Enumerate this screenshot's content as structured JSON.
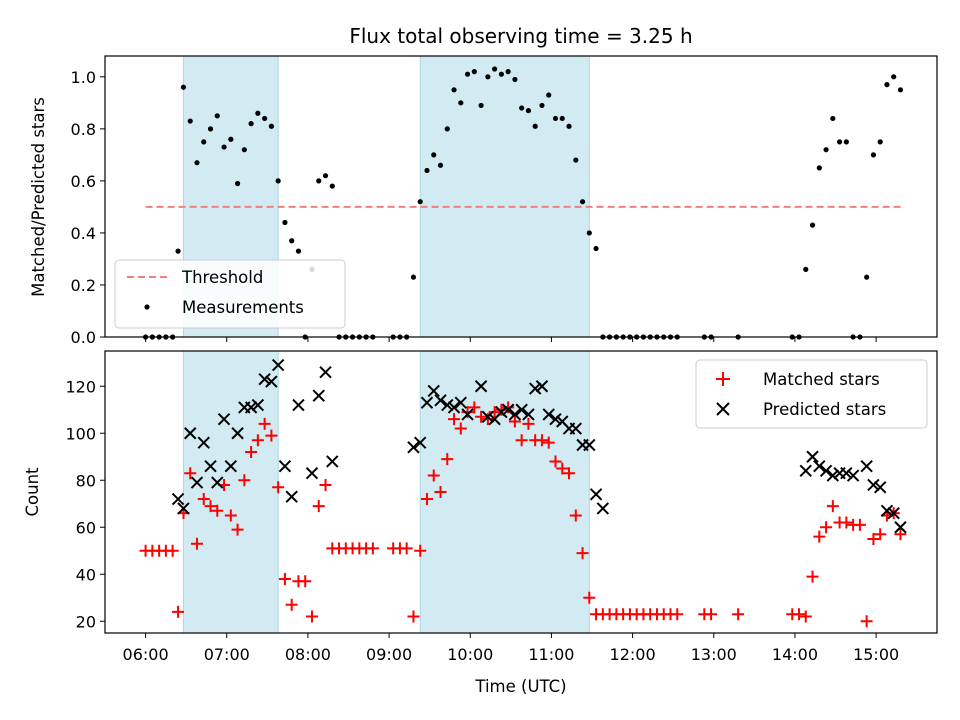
{
  "chart_data": {
    "title": "Flux total observing time = 3.25 h",
    "xlabel": "Time (UTC)",
    "x_ticks": [
      "06:00",
      "07:00",
      "08:00",
      "09:00",
      "10:00",
      "11:00",
      "12:00",
      "13:00",
      "14:00",
      "15:00"
    ],
    "x_range": [
      "05:30",
      "15:45"
    ],
    "shaded_intervals": [
      [
        "06:28",
        "07:38"
      ],
      [
        "09:23",
        "11:28"
      ]
    ],
    "colors": {
      "shade": "#add8e6",
      "threshold": "#f08080",
      "matched": "#ff0000",
      "predicted": "#000000",
      "measurement": "#000000"
    },
    "panels": [
      {
        "type": "scatter",
        "ylabel": "Matched/Predicted stars",
        "ylim": [
          0,
          1.08
        ],
        "y_ticks": [
          "0.0",
          "0.2",
          "0.4",
          "0.6",
          "0.8",
          "1.0"
        ],
        "y_tick_values": [
          0,
          0.2,
          0.4,
          0.6,
          0.8,
          1.0
        ],
        "legend": {
          "placement": "lower-left",
          "threshold_label": "Threshold",
          "measurements_label": "Measurements"
        },
        "threshold": {
          "value": 0.5,
          "x": [
            "06:00",
            "15:20"
          ]
        },
        "measurements": [
          [
            "06:00",
            0
          ],
          [
            "06:05",
            0
          ],
          [
            "06:10",
            0
          ],
          [
            "06:15",
            0
          ],
          [
            "06:20",
            0
          ],
          [
            "06:24",
            0.33
          ],
          [
            "06:28",
            0.96
          ],
          [
            "06:33",
            0.83
          ],
          [
            "06:38",
            0.67
          ],
          [
            "06:43",
            0.75
          ],
          [
            "06:48",
            0.8
          ],
          [
            "06:53",
            0.85
          ],
          [
            "06:58",
            0.73
          ],
          [
            "07:03",
            0.76
          ],
          [
            "07:08",
            0.59
          ],
          [
            "07:13",
            0.72
          ],
          [
            "07:18",
            0.82
          ],
          [
            "07:23",
            0.86
          ],
          [
            "07:28",
            0.84
          ],
          [
            "07:33",
            0.81
          ],
          [
            "07:38",
            0.6
          ],
          [
            "07:43",
            0.44
          ],
          [
            "07:48",
            0.37
          ],
          [
            "07:53",
            0.33
          ],
          [
            "07:58",
            0
          ],
          [
            "08:03",
            0.26
          ],
          [
            "08:08",
            0.6
          ],
          [
            "08:13",
            0.62
          ],
          [
            "08:18",
            0.58
          ],
          [
            "08:23",
            0
          ],
          [
            "08:28",
            0
          ],
          [
            "08:33",
            0
          ],
          [
            "08:38",
            0
          ],
          [
            "08:43",
            0
          ],
          [
            "08:48",
            0
          ],
          [
            "09:03",
            0
          ],
          [
            "09:08",
            0
          ],
          [
            "09:13",
            0
          ],
          [
            "09:18",
            0.23
          ],
          [
            "09:23",
            0.52
          ],
          [
            "09:28",
            0.64
          ],
          [
            "09:33",
            0.7
          ],
          [
            "09:38",
            0.66
          ],
          [
            "09:43",
            0.8
          ],
          [
            "09:48",
            0.95
          ],
          [
            "09:53",
            0.9
          ],
          [
            "09:58",
            1.01
          ],
          [
            "10:03",
            1.02
          ],
          [
            "10:08",
            0.89
          ],
          [
            "10:13",
            1.0
          ],
          [
            "10:18",
            1.03
          ],
          [
            "10:23",
            1.01
          ],
          [
            "10:28",
            1.02
          ],
          [
            "10:33",
            0.99
          ],
          [
            "10:38",
            0.88
          ],
          [
            "10:43",
            0.87
          ],
          [
            "10:48",
            0.81
          ],
          [
            "10:53",
            0.89
          ],
          [
            "10:58",
            0.93
          ],
          [
            "11:03",
            0.84
          ],
          [
            "11:08",
            0.84
          ],
          [
            "11:13",
            0.81
          ],
          [
            "11:18",
            0.68
          ],
          [
            "11:23",
            0.52
          ],
          [
            "11:28",
            0.4
          ],
          [
            "11:33",
            0.34
          ],
          [
            "11:38",
            0
          ],
          [
            "11:43",
            0
          ],
          [
            "11:48",
            0
          ],
          [
            "11:53",
            0
          ],
          [
            "11:58",
            0
          ],
          [
            "12:03",
            0
          ],
          [
            "12:08",
            0
          ],
          [
            "12:13",
            0
          ],
          [
            "12:18",
            0
          ],
          [
            "12:23",
            0
          ],
          [
            "12:28",
            0
          ],
          [
            "12:33",
            0
          ],
          [
            "12:53",
            0
          ],
          [
            "12:58",
            0
          ],
          [
            "13:18",
            0
          ],
          [
            "13:58",
            0
          ],
          [
            "14:03",
            0
          ],
          [
            "14:08",
            0.26
          ],
          [
            "14:13",
            0.43
          ],
          [
            "14:18",
            0.65
          ],
          [
            "14:23",
            0.72
          ],
          [
            "14:28",
            0.84
          ],
          [
            "14:33",
            0.75
          ],
          [
            "14:38",
            0.75
          ],
          [
            "14:43",
            0
          ],
          [
            "14:48",
            0
          ],
          [
            "14:53",
            0.23
          ],
          [
            "14:58",
            0.7
          ],
          [
            "15:03",
            0.75
          ],
          [
            "15:08",
            0.97
          ],
          [
            "15:13",
            1.0
          ],
          [
            "15:18",
            0.95
          ]
        ]
      },
      {
        "type": "scatter",
        "ylabel": "Count",
        "ylim": [
          15,
          135
        ],
        "y_ticks": [
          "20",
          "40",
          "60",
          "80",
          "100",
          "120"
        ],
        "y_tick_values": [
          20,
          40,
          60,
          80,
          100,
          120
        ],
        "legend": {
          "placement": "top-right",
          "matched_label": "Matched stars",
          "predicted_label": "Predicted stars"
        },
        "matched": [
          [
            "06:00",
            50
          ],
          [
            "06:05",
            50
          ],
          [
            "06:10",
            50
          ],
          [
            "06:15",
            50
          ],
          [
            "06:20",
            50
          ],
          [
            "06:24",
            24
          ],
          [
            "06:28",
            66
          ],
          [
            "06:33",
            83
          ],
          [
            "06:38",
            53
          ],
          [
            "06:43",
            72
          ],
          [
            "06:48",
            69
          ],
          [
            "06:53",
            67
          ],
          [
            "06:58",
            78
          ],
          [
            "07:03",
            65
          ],
          [
            "07:08",
            59
          ],
          [
            "07:13",
            80
          ],
          [
            "07:18",
            92
          ],
          [
            "07:23",
            97
          ],
          [
            "07:28",
            104
          ],
          [
            "07:33",
            99
          ],
          [
            "07:38",
            77
          ],
          [
            "07:43",
            38
          ],
          [
            "07:48",
            27
          ],
          [
            "07:53",
            37
          ],
          [
            "07:58",
            37
          ],
          [
            "08:03",
            22
          ],
          [
            "08:08",
            69
          ],
          [
            "08:13",
            78
          ],
          [
            "08:18",
            51
          ],
          [
            "08:23",
            51
          ],
          [
            "08:28",
            51
          ],
          [
            "08:33",
            51
          ],
          [
            "08:38",
            51
          ],
          [
            "08:43",
            51
          ],
          [
            "08:48",
            51
          ],
          [
            "09:03",
            51
          ],
          [
            "09:08",
            51
          ],
          [
            "09:13",
            51
          ],
          [
            "09:18",
            22
          ],
          [
            "09:23",
            50
          ],
          [
            "09:28",
            72
          ],
          [
            "09:33",
            82
          ],
          [
            "09:38",
            75
          ],
          [
            "09:43",
            89
          ],
          [
            "09:48",
            106
          ],
          [
            "09:53",
            102
          ],
          [
            "09:58",
            109
          ],
          [
            "10:03",
            111
          ],
          [
            "10:08",
            107
          ],
          [
            "10:13",
            106
          ],
          [
            "10:18",
            109
          ],
          [
            "10:23",
            110
          ],
          [
            "10:28",
            111
          ],
          [
            "10:33",
            105
          ],
          [
            "10:38",
            97
          ],
          [
            "10:43",
            104
          ],
          [
            "10:48",
            97
          ],
          [
            "10:53",
            97
          ],
          [
            "10:58",
            96
          ],
          [
            "11:03",
            88
          ],
          [
            "11:08",
            85
          ],
          [
            "11:13",
            83
          ],
          [
            "11:18",
            65
          ],
          [
            "11:23",
            49
          ],
          [
            "11:28",
            30
          ],
          [
            "11:33",
            23
          ],
          [
            "11:38",
            23
          ],
          [
            "11:43",
            23
          ],
          [
            "11:48",
            23
          ],
          [
            "11:53",
            23
          ],
          [
            "11:58",
            23
          ],
          [
            "12:03",
            23
          ],
          [
            "12:08",
            23
          ],
          [
            "12:13",
            23
          ],
          [
            "12:18",
            23
          ],
          [
            "12:23",
            23
          ],
          [
            "12:28",
            23
          ],
          [
            "12:33",
            23
          ],
          [
            "12:53",
            23
          ],
          [
            "12:58",
            23
          ],
          [
            "13:18",
            23
          ],
          [
            "13:58",
            23
          ],
          [
            "14:03",
            23
          ],
          [
            "14:08",
            22
          ],
          [
            "14:13",
            39
          ],
          [
            "14:18",
            56
          ],
          [
            "14:23",
            60
          ],
          [
            "14:28",
            69
          ],
          [
            "14:33",
            62
          ],
          [
            "14:38",
            62
          ],
          [
            "14:43",
            61
          ],
          [
            "14:48",
            61
          ],
          [
            "14:53",
            20
          ],
          [
            "14:58",
            55
          ],
          [
            "15:03",
            57
          ],
          [
            "15:08",
            65
          ],
          [
            "15:13",
            66
          ],
          [
            "15:18",
            57
          ]
        ],
        "predicted": [
          [
            "06:24",
            72
          ],
          [
            "06:28",
            68
          ],
          [
            "06:33",
            100
          ],
          [
            "06:38",
            79
          ],
          [
            "06:43",
            96
          ],
          [
            "06:48",
            86
          ],
          [
            "06:53",
            79
          ],
          [
            "06:58",
            106
          ],
          [
            "07:03",
            86
          ],
          [
            "07:08",
            100
          ],
          [
            "07:13",
            111
          ],
          [
            "07:18",
            111
          ],
          [
            "07:23",
            112
          ],
          [
            "07:28",
            123
          ],
          [
            "07:33",
            122
          ],
          [
            "07:38",
            129
          ],
          [
            "07:43",
            86
          ],
          [
            "07:48",
            73
          ],
          [
            "07:53",
            112
          ],
          [
            "08:03",
            83
          ],
          [
            "08:08",
            116
          ],
          [
            "08:13",
            126
          ],
          [
            "08:18",
            88
          ],
          [
            "09:18",
            94
          ],
          [
            "09:23",
            96
          ],
          [
            "09:28",
            113
          ],
          [
            "09:33",
            118
          ],
          [
            "09:38",
            114
          ],
          [
            "09:43",
            112
          ],
          [
            "09:48",
            111
          ],
          [
            "09:53",
            113
          ],
          [
            "09:58",
            108
          ],
          [
            "10:08",
            120
          ],
          [
            "10:13",
            107
          ],
          [
            "10:18",
            106
          ],
          [
            "10:23",
            109
          ],
          [
            "10:28",
            110
          ],
          [
            "10:33",
            108
          ],
          [
            "10:38",
            110
          ],
          [
            "10:43",
            108
          ],
          [
            "10:48",
            119
          ],
          [
            "10:53",
            120
          ],
          [
            "10:58",
            108
          ],
          [
            "11:03",
            106
          ],
          [
            "11:08",
            105
          ],
          [
            "11:13",
            102
          ],
          [
            "11:18",
            102
          ],
          [
            "11:23",
            95
          ],
          [
            "11:28",
            95
          ],
          [
            "11:33",
            74
          ],
          [
            "11:38",
            68
          ],
          [
            "14:08",
            84
          ],
          [
            "14:13",
            90
          ],
          [
            "14:18",
            86
          ],
          [
            "14:23",
            84
          ],
          [
            "14:28",
            82
          ],
          [
            "14:33",
            83
          ],
          [
            "14:38",
            83
          ],
          [
            "14:43",
            82
          ],
          [
            "14:53",
            86
          ],
          [
            "14:58",
            78
          ],
          [
            "15:03",
            77
          ],
          [
            "15:08",
            67
          ],
          [
            "15:13",
            66
          ],
          [
            "15:18",
            60
          ]
        ]
      }
    ]
  }
}
